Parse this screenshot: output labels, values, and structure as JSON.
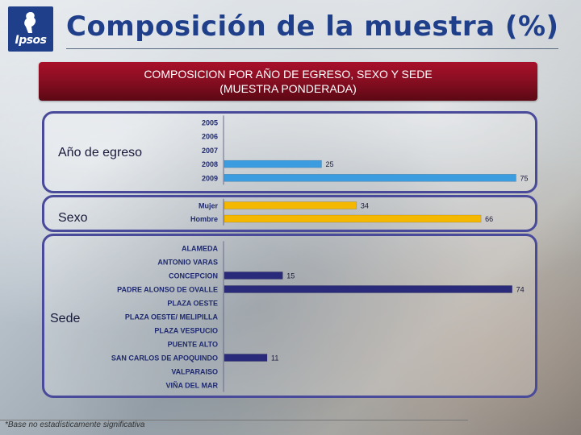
{
  "header": {
    "logo_text": "Ipsos",
    "title": "Composición de la muestra (%)"
  },
  "banner": {
    "line1": "COMPOSICION POR  AÑO DE EGRESO, SEXO Y SEDE",
    "line2": "(MUESTRA PONDERADA)"
  },
  "footnote": "*Base no estadísticamente significativa",
  "colors": {
    "year_bar": "#3b9de0",
    "sex_bar": "#f5b800",
    "site_bar": "#2a2a7a",
    "panel_border": "#4a4a9a",
    "banner": "#8a0e22",
    "title": "#1f3f8a"
  },
  "chart_data": [
    {
      "type": "bar",
      "orientation": "horizontal",
      "group_label": "Año de egreso",
      "categories": [
        "2005",
        "2006",
        "2007",
        "2008",
        "2009"
      ],
      "values": [
        null,
        null,
        null,
        25,
        75
      ],
      "data_labels": [
        "",
        "",
        "",
        "25",
        "75"
      ],
      "color": "#3b9de0",
      "xlim": [
        0,
        100
      ]
    },
    {
      "type": "bar",
      "orientation": "horizontal",
      "group_label": "Sexo",
      "categories": [
        "Mujer",
        "Hombre"
      ],
      "values": [
        34,
        66
      ],
      "data_labels": [
        "34",
        "66"
      ],
      "color": "#f5b800",
      "xlim": [
        0,
        100
      ]
    },
    {
      "type": "bar",
      "orientation": "horizontal",
      "group_label": "Sede",
      "categories": [
        "ALAMEDA",
        "ANTONIO VARAS",
        "CONCEPCION",
        "PADRE ALONSO DE OVALLE",
        "PLAZA OESTE",
        "PLAZA OESTE/ MELIPILLA",
        "PLAZA VESPUCIO",
        "PUENTE ALTO",
        "SAN CARLOS DE APOQUINDO",
        "VALPARAISO",
        "VIÑA DEL MAR"
      ],
      "values": [
        null,
        null,
        15,
        74,
        null,
        null,
        null,
        null,
        11,
        null,
        null
      ],
      "data_labels": [
        "",
        "",
        "15",
        "74",
        "",
        "",
        "",
        "",
        "11",
        "",
        ""
      ],
      "color": "#2a2a7a",
      "xlim": [
        0,
        100
      ]
    }
  ]
}
